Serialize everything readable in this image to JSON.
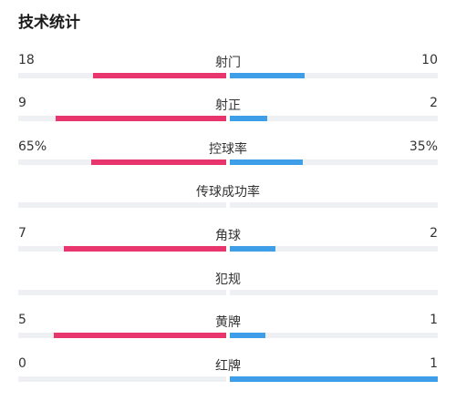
{
  "title": "技术统计",
  "colors": {
    "home": "#e8356d",
    "away": "#3f9ee8",
    "track": "#eef0f3"
  },
  "stats": [
    {
      "label": "射门",
      "home": "18",
      "away": "10",
      "home_ratio": 0.64,
      "away_ratio": 0.36
    },
    {
      "label": "射正",
      "home": "9",
      "away": "2",
      "home_ratio": 0.82,
      "away_ratio": 0.18
    },
    {
      "label": "控球率",
      "home": "65%",
      "away": "35%",
      "home_ratio": 0.65,
      "away_ratio": 0.35
    },
    {
      "label": "传球成功率",
      "home": "",
      "away": "",
      "home_ratio": 0,
      "away_ratio": 0
    },
    {
      "label": "角球",
      "home": "7",
      "away": "2",
      "home_ratio": 0.78,
      "away_ratio": 0.22
    },
    {
      "label": "犯规",
      "home": "",
      "away": "",
      "home_ratio": 0,
      "away_ratio": 0
    },
    {
      "label": "黄牌",
      "home": "5",
      "away": "1",
      "home_ratio": 0.83,
      "away_ratio": 0.17
    },
    {
      "label": "红牌",
      "home": "0",
      "away": "1",
      "home_ratio": 0,
      "away_ratio": 1
    }
  ]
}
